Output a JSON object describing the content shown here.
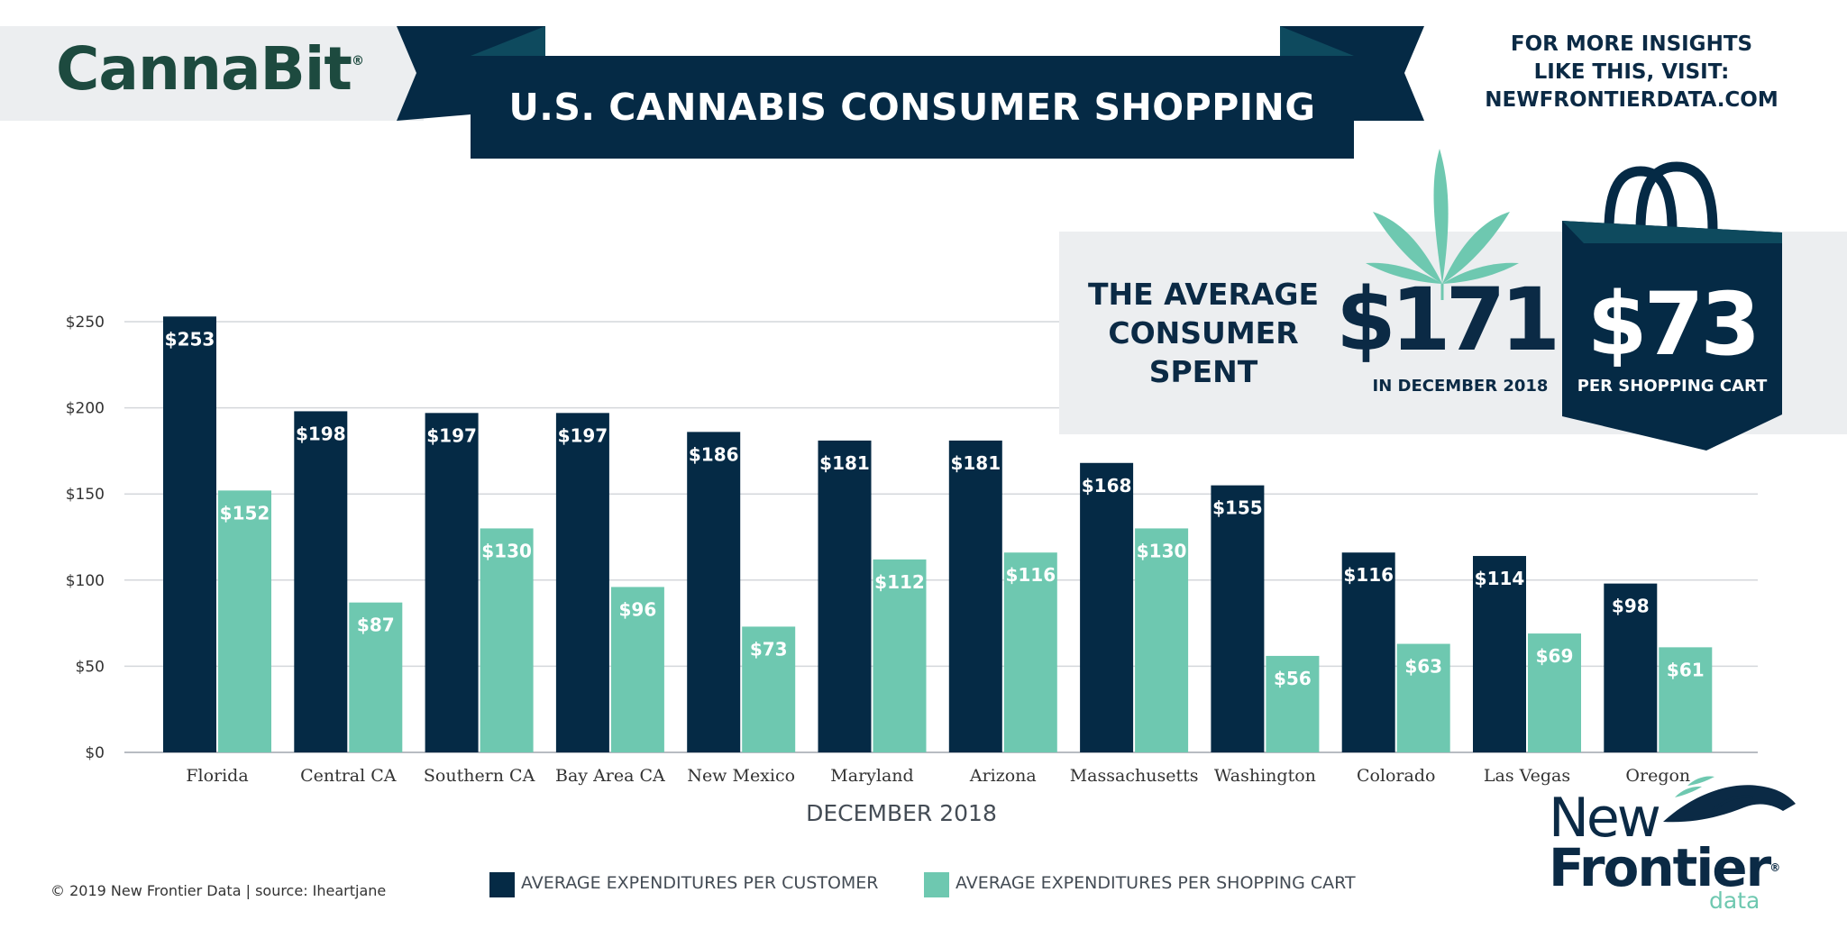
{
  "brand": {
    "logo_text": "CannaBit",
    "logo_mark": "®"
  },
  "header": {
    "title": "U.S. CANNABIS CONSUMER SHOPPING"
  },
  "insights": {
    "line1": "FOR MORE INSIGHTS",
    "line2": "LIKE THIS, VISIT:",
    "line3": "NEWFRONTIERDATA.COM"
  },
  "stats": {
    "label_line1": "THE AVERAGE",
    "label_line2": "CONSUMER",
    "label_line3": "SPENT",
    "amount_month": "$171",
    "amount_month_caption": "IN DECEMBER 2018",
    "amount_cart": "$73",
    "amount_cart_caption": "PER SHOPPING CART"
  },
  "chart_data": {
    "type": "bar",
    "categories": [
      "Florida",
      "Central CA",
      "Southern CA",
      "Bay Area CA",
      "New Mexico",
      "Maryland",
      "Arizona",
      "Massachusetts",
      "Washington",
      "Colorado",
      "Las Vegas",
      "Oregon"
    ],
    "series": [
      {
        "name": "AVERAGE EXPENDITURES PER CUSTOMER",
        "values": [
          253,
          198,
          197,
          197,
          186,
          181,
          181,
          168,
          155,
          116,
          114,
          98
        ],
        "labels": [
          "$253",
          "$198",
          "$197",
          "$197",
          "$186",
          "$181",
          "$181",
          "$168",
          "$155",
          "$116",
          "$114",
          "$98"
        ],
        "color": "#052a45"
      },
      {
        "name": "AVERAGE EXPENDITURES PER SHOPPING CART",
        "values": [
          152,
          87,
          130,
          96,
          73,
          112,
          116,
          130,
          56,
          63,
          69,
          61
        ],
        "labels": [
          "$152",
          "$87",
          "$130",
          "$96",
          "$73",
          "$112",
          "$116",
          "$130",
          "$56",
          "$63",
          "$69",
          "$61"
        ],
        "color": "#6ec8b0"
      }
    ],
    "ytick_values": [
      0,
      50,
      100,
      150,
      200,
      250
    ],
    "ytick_labels": [
      "$0",
      "$50",
      "$100",
      "$150",
      "$200",
      "$250"
    ],
    "ylim": [
      0,
      250
    ],
    "xlabel": "DECEMBER 2018",
    "grid": true,
    "legend_position": "bottom"
  },
  "footer": {
    "copyright": "© 2019  New Frontier Data | source: Iheartjane",
    "nf_line1": "New",
    "nf_line2": "Frontier",
    "nf_mark": "®",
    "nf_line3": "data"
  }
}
